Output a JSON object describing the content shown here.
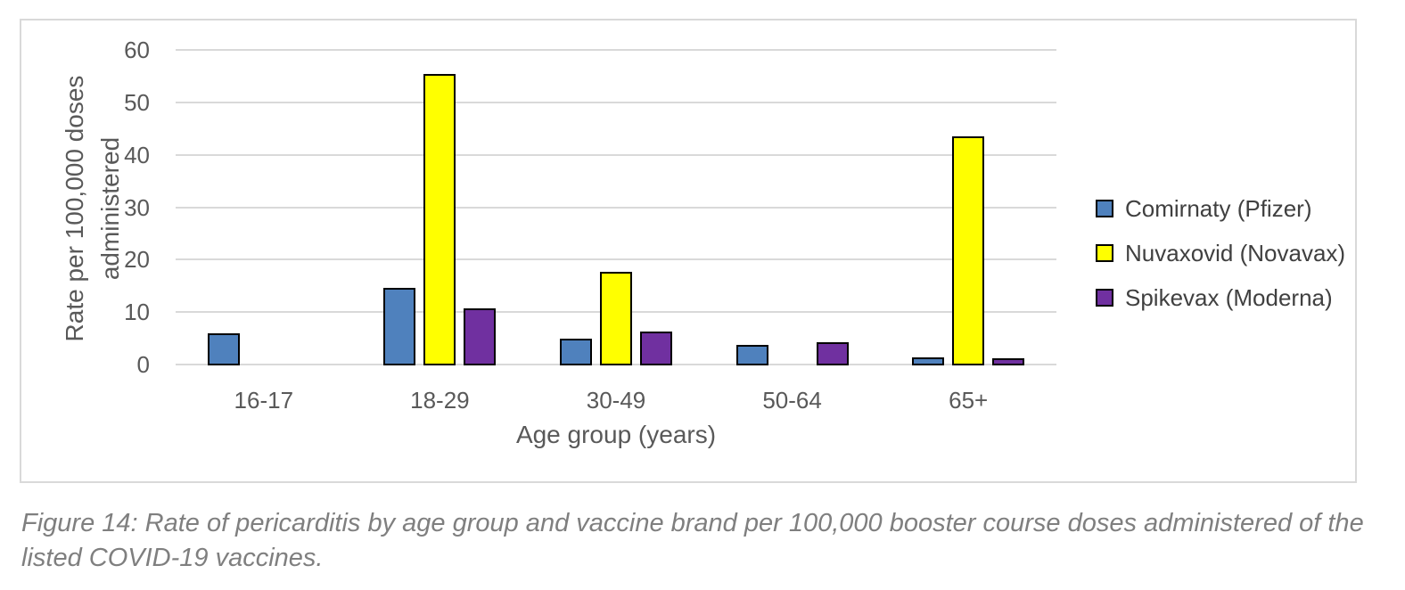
{
  "figure": {
    "caption": "Figure 14: Rate of pericarditis by age group and vaccine brand per 100,000 booster course doses administered of the listed COVID-19 vaccines."
  },
  "chart_data": {
    "type": "bar",
    "title": "",
    "categories": [
      "16-17",
      "18-29",
      "30-49",
      "50-64",
      "65+"
    ],
    "series": [
      {
        "name": "Comirnaty (Pfizer)",
        "color": "#4F81BD",
        "values": [
          5.8,
          14.4,
          4.8,
          3.5,
          1.2
        ]
      },
      {
        "name": "Nuvaxovid (Novavax)",
        "color": "#FFFF00",
        "values": [
          0,
          55.2,
          17.5,
          0,
          43.4
        ]
      },
      {
        "name": "Spikevax (Moderna)",
        "color": "#7030A0",
        "values": [
          0,
          10.6,
          6.2,
          4.0,
          1.0
        ]
      }
    ],
    "xlabel": "Age group (years)",
    "ylabel": "Rate per 100,000 doses administered",
    "ylabel_lines": [
      "Rate per 100,000 doses",
      "administered"
    ],
    "yticks": [
      0,
      10,
      20,
      30,
      40,
      50,
      60
    ],
    "ylim": [
      0,
      60
    ],
    "grid": true,
    "legend_position": "right",
    "colors": {
      "gridline": "#D9D9D9",
      "axis_text": "#595959",
      "legend_text": "#404040",
      "bar_border": "#000000",
      "chart_border": "#D9D9D9",
      "caption_text": "#7F7F7F",
      "background": "#FFFFFF"
    }
  }
}
